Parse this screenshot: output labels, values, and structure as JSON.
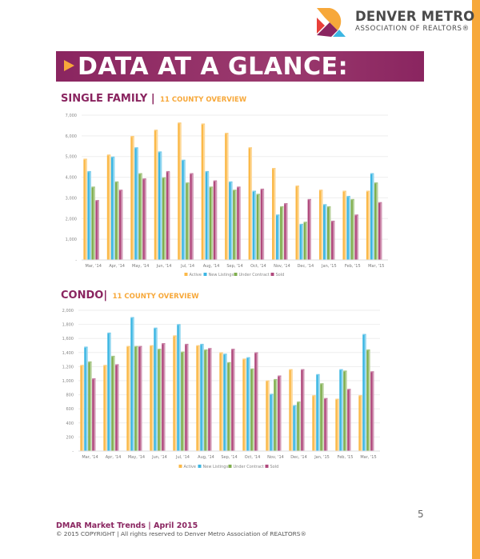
{
  "header": {
    "brand_line1": "DENVER METRO",
    "brand_line2": "ASSOCIATION OF REALTORS®"
  },
  "banner": {
    "title": "DATA AT A GLANCE:"
  },
  "sections": [
    {
      "title": "SINGLE FAMILY |",
      "subtitle": "11 COUNTY OVERVIEW"
    },
    {
      "title": "CONDO|",
      "subtitle": "11 COUNTY OVERVIEW"
    }
  ],
  "chart_data": [
    {
      "type": "bar",
      "title": "",
      "xlabel": "",
      "ylabel": "",
      "ylim": [
        0,
        7000
      ],
      "yticks": [
        "-",
        "1,000",
        "2,000",
        "3,000",
        "4,000",
        "5,000",
        "6,000",
        "7,000"
      ],
      "categories": [
        "Mar, '14",
        "Apr, '14",
        "May, '14",
        "Jun, '14",
        "Jul, '14",
        "Aug, '14",
        "Sep, '14",
        "Oct, '14",
        "Nov, '14",
        "Dec, '14",
        "Jan, '15",
        "Feb, '15",
        "Mar, '15"
      ],
      "legend": "bottom",
      "grid": true,
      "series": [
        {
          "name": "Active",
          "color": "#fbb949",
          "values": [
            4850,
            5050,
            5950,
            6250,
            6600,
            6550,
            6100,
            5400,
            4400,
            3550,
            3350,
            3300,
            3300
          ]
        },
        {
          "name": "New Listings",
          "color": "#3cb6e3",
          "values": [
            4250,
            4950,
            5400,
            5200,
            4800,
            4250,
            3750,
            3300,
            2150,
            1700,
            2650,
            3050,
            4150
          ]
        },
        {
          "name": "Under Contract",
          "color": "#7fae4e",
          "values": [
            3500,
            3750,
            4150,
            3950,
            3700,
            3500,
            3350,
            3150,
            2550,
            1800,
            2550,
            2900,
            3700
          ]
        },
        {
          "name": "Sold",
          "color": "#b04a7d",
          "values": [
            2850,
            3350,
            3900,
            4250,
            4150,
            3800,
            3500,
            3400,
            2700,
            2900,
            1850,
            2150,
            2750
          ]
        }
      ]
    },
    {
      "type": "bar",
      "title": "",
      "xlabel": "",
      "ylabel": "",
      "ylim": [
        0,
        2000
      ],
      "yticks": [
        "-",
        "200",
        "400",
        "600",
        "800",
        "1,000",
        "1,200",
        "1,400",
        "1,600",
        "1,800",
        "2,000"
      ],
      "categories": [
        "Mar, '14",
        "Apr, '14",
        "May, '14",
        "Jun, '14",
        "Jul, '14",
        "Aug, '14",
        "Sep, '14",
        "Oct, '14",
        "Nov, '14",
        "Dec, '14",
        "Jan, '15",
        "Feb, '15",
        "Mar, '15"
      ],
      "legend": "bottom",
      "grid": true,
      "series": [
        {
          "name": "Active",
          "color": "#fbb949",
          "values": [
            1210,
            1210,
            1480,
            1490,
            1630,
            1490,
            1390,
            1300,
            990,
            1150,
            780,
            730,
            780
          ]
        },
        {
          "name": "New Listings",
          "color": "#3cb6e3",
          "values": [
            1470,
            1670,
            1890,
            1740,
            1790,
            1510,
            1370,
            1320,
            800,
            640,
            1080,
            1150,
            1650
          ]
        },
        {
          "name": "Under Contract",
          "color": "#7fae4e",
          "values": [
            1260,
            1340,
            1480,
            1440,
            1400,
            1430,
            1250,
            1160,
            1010,
            690,
            950,
            1130,
            1430
          ]
        },
        {
          "name": "Sold",
          "color": "#b04a7d",
          "values": [
            1020,
            1220,
            1480,
            1520,
            1510,
            1450,
            1440,
            1390,
            1060,
            1150,
            740,
            870,
            1120
          ]
        }
      ]
    }
  ],
  "footer": {
    "page_number": "5",
    "title": "DMAR Market Trends | April 2015",
    "copyright": "© 2015 COPYRIGHT | All rights reserved to Denver Metro Association of REALTORS®"
  }
}
